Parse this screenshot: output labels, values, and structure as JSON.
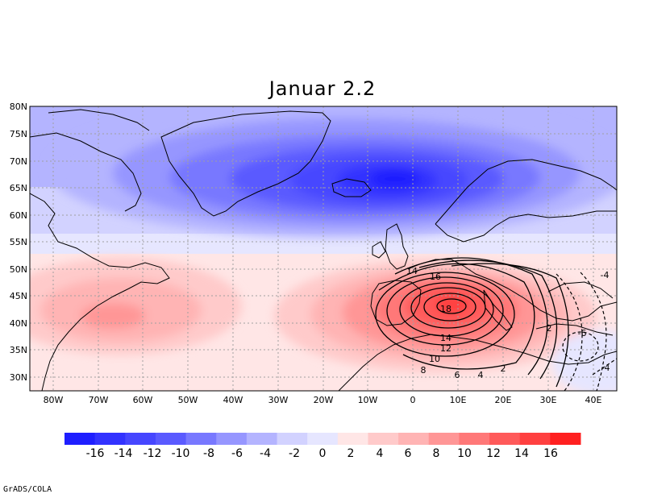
{
  "title": "Januar 2.2",
  "credit": "GrADS/COLA",
  "y_axis_labels": [
    "80N",
    "75N",
    "70N",
    "65N",
    "60N",
    "55N",
    "50N",
    "45N",
    "40N",
    "35N",
    "30N"
  ],
  "x_axis_labels": [
    "80W",
    "70W",
    "60W",
    "50W",
    "40W",
    "30W",
    "20W",
    "10W",
    "0",
    "10E",
    "20E",
    "30E",
    "40E"
  ],
  "contour_labels": [
    {
      "text": "14"
    },
    {
      "text": "16"
    },
    {
      "text": "18"
    },
    {
      "text": "14"
    },
    {
      "text": "12"
    },
    {
      "text": "10"
    },
    {
      "text": "8"
    },
    {
      "text": "6"
    },
    {
      "text": "4"
    },
    {
      "text": "2"
    },
    {
      "text": "2"
    },
    {
      "text": "-4"
    },
    {
      "text": "-6"
    },
    {
      "text": "-4"
    }
  ],
  "colorbar": {
    "labels": [
      "-16",
      "-14",
      "-12",
      "-10",
      "-8",
      "-6",
      "-4",
      "-2",
      "0",
      "2",
      "4",
      "6",
      "8",
      "10",
      "12",
      "14",
      "16"
    ],
    "colors": [
      "#1e1eff",
      "#3232ff",
      "#4646ff",
      "#5a5aff",
      "#7878ff",
      "#9696ff",
      "#b4b4ff",
      "#d2d2ff",
      "#e6e6ff",
      "#ffe6e6",
      "#ffcaca",
      "#ffb4b4",
      "#ff9696",
      "#ff7878",
      "#ff5a5a",
      "#ff4040",
      "#ff2020"
    ]
  },
  "colors": {
    "frame": "#000000",
    "grid": "#a0a0a0"
  }
}
